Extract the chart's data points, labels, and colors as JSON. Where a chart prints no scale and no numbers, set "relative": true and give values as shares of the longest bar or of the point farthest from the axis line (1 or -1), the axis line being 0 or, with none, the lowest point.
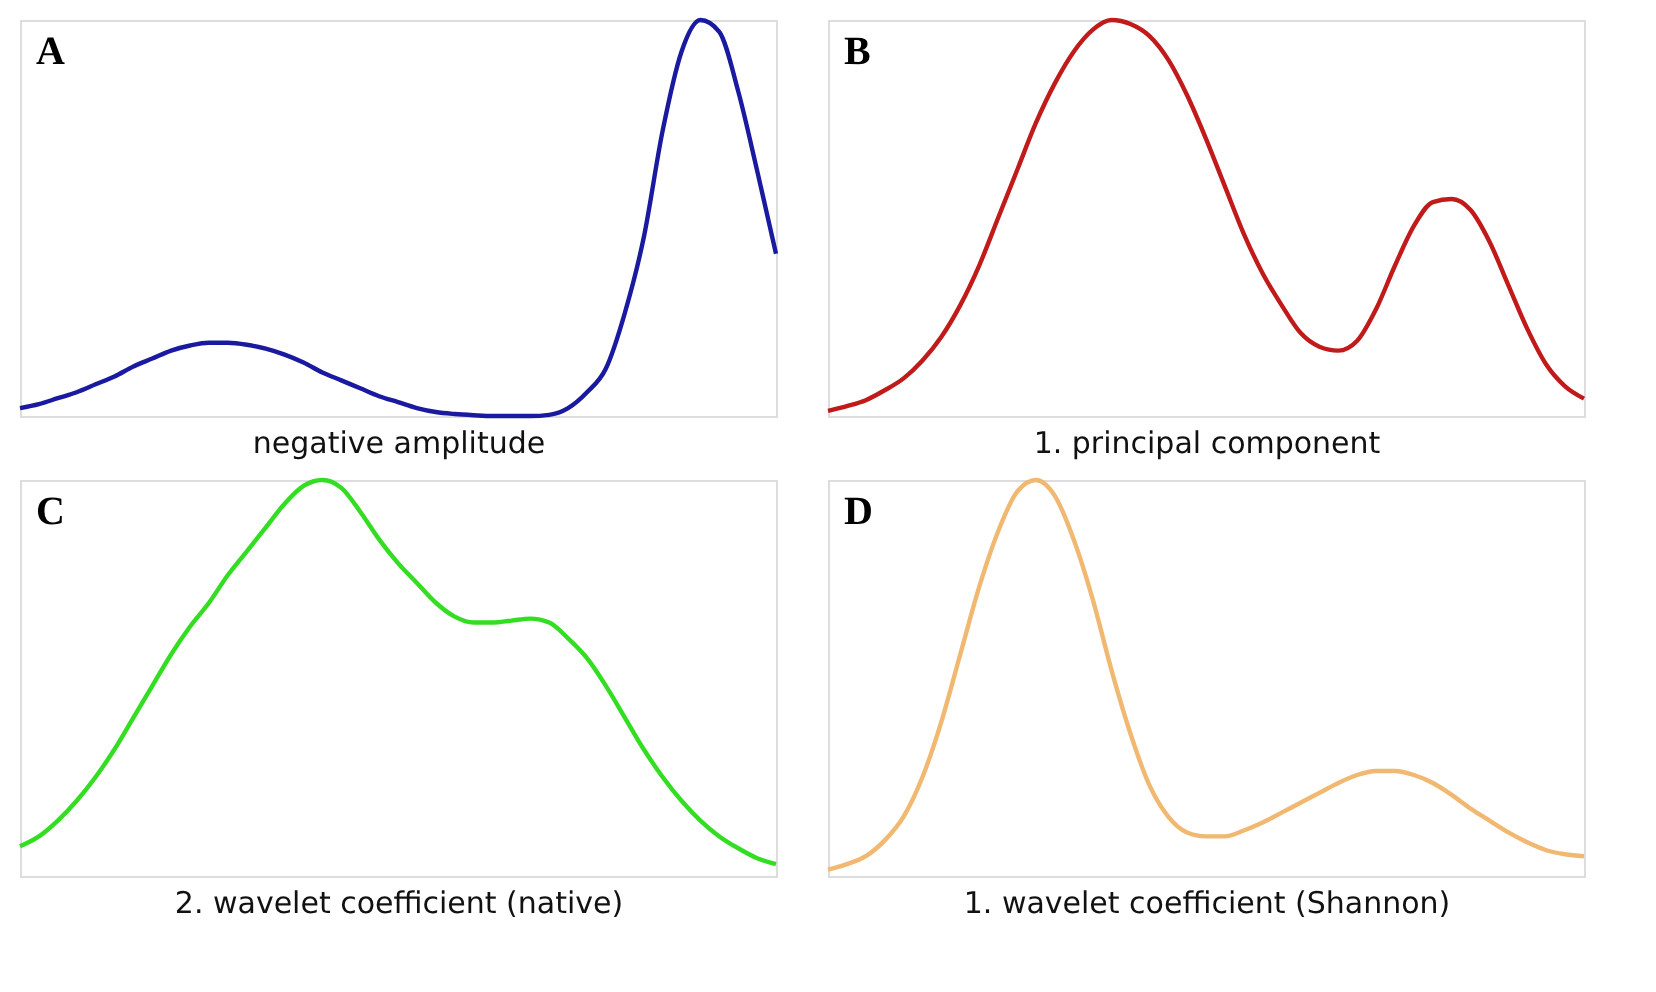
{
  "chart_data": [
    {
      "type": "line",
      "title": "A",
      "xlabel": "negative amplitude",
      "relative": true,
      "categories": [
        null,
        null,
        null,
        null,
        null,
        null,
        null,
        null,
        null,
        null,
        null,
        null,
        null,
        null,
        null,
        null,
        null,
        null,
        null,
        null,
        null,
        null,
        null,
        null,
        null,
        null,
        null,
        null,
        null,
        null,
        null,
        null,
        null,
        null,
        null,
        null,
        null,
        null,
        null,
        null,
        null
      ],
      "series": [
        {
          "color": "#1a1aa0",
          "values": [
            0.02,
            0.03,
            0.045,
            0.06,
            0.08,
            0.1,
            0.125,
            0.145,
            0.165,
            0.178,
            0.185,
            0.185,
            0.18,
            0.17,
            0.155,
            0.135,
            0.11,
            0.09,
            0.07,
            0.05,
            0.035,
            0.02,
            0.01,
            0.005,
            0.002,
            0,
            0,
            0,
            0.003,
            0.02,
            0.06,
            0.12,
            0.26,
            0.45,
            0.72,
            0.92,
            1.0,
            0.97,
            0.82,
            0.62,
            0.41
          ]
        }
      ]
    },
    {
      "type": "line",
      "title": "B",
      "xlabel": "1. principal component",
      "relative": true,
      "categories": [
        null,
        null,
        null,
        null,
        null,
        null,
        null,
        null,
        null,
        null,
        null,
        null,
        null,
        null,
        null,
        null,
        null,
        null,
        null,
        null,
        null,
        null,
        null,
        null,
        null,
        null,
        null,
        null,
        null,
        null,
        null,
        null,
        null,
        null,
        null,
        null,
        null,
        null,
        null,
        null,
        null
      ],
      "series": [
        {
          "color": "#c01a1a",
          "values": [
            0.013,
            0.025,
            0.04,
            0.065,
            0.095,
            0.14,
            0.2,
            0.28,
            0.38,
            0.5,
            0.62,
            0.74,
            0.84,
            0.92,
            0.975,
            1.0,
            0.99,
            0.96,
            0.9,
            0.81,
            0.7,
            0.58,
            0.46,
            0.36,
            0.28,
            0.21,
            0.175,
            0.165,
            0.19,
            0.27,
            0.38,
            0.48,
            0.54,
            0.548,
            0.52,
            0.44,
            0.33,
            0.22,
            0.13,
            0.075,
            0.044
          ]
        }
      ]
    },
    {
      "type": "line",
      "title": "C",
      "xlabel": "2. wavelet coefficient (native)",
      "relative": true,
      "categories": [
        null,
        null,
        null,
        null,
        null,
        null,
        null,
        null,
        null,
        null,
        null,
        null,
        null,
        null,
        null,
        null,
        null,
        null,
        null,
        null,
        null,
        null,
        null,
        null,
        null,
        null,
        null,
        null,
        null,
        null,
        null,
        null,
        null,
        null,
        null,
        null,
        null,
        null,
        null,
        null,
        null
      ],
      "series": [
        {
          "color": "#33dd22",
          "values": [
            0.075,
            0.1,
            0.14,
            0.19,
            0.25,
            0.32,
            0.4,
            0.48,
            0.56,
            0.63,
            0.69,
            0.76,
            0.82,
            0.88,
            0.94,
            0.985,
            1.0,
            0.98,
            0.92,
            0.85,
            0.79,
            0.74,
            0.69,
            0.655,
            0.64,
            0.64,
            0.645,
            0.65,
            0.64,
            0.6,
            0.55,
            0.48,
            0.4,
            0.32,
            0.25,
            0.19,
            0.14,
            0.1,
            0.07,
            0.045,
            0.03
          ]
        }
      ]
    },
    {
      "type": "line",
      "title": "D",
      "xlabel": "1. wavelet coefficient (Shannon)",
      "relative": true,
      "categories": [
        null,
        null,
        null,
        null,
        null,
        null,
        null,
        null,
        null,
        null,
        null,
        null,
        null,
        null,
        null,
        null,
        null,
        null,
        null,
        null,
        null,
        null,
        null,
        null,
        null,
        null,
        null,
        null,
        null,
        null,
        null,
        null,
        null,
        null,
        null,
        null,
        null,
        null,
        null,
        null,
        null
      ],
      "series": [
        {
          "color": "#f0b870",
          "values": [
            0.016,
            0.03,
            0.05,
            0.09,
            0.15,
            0.25,
            0.39,
            0.56,
            0.73,
            0.87,
            0.97,
            1.0,
            0.96,
            0.85,
            0.7,
            0.52,
            0.36,
            0.23,
            0.15,
            0.11,
            0.1,
            0.1,
            0.115,
            0.135,
            0.16,
            0.185,
            0.21,
            0.235,
            0.255,
            0.265,
            0.265,
            0.255,
            0.235,
            0.205,
            0.17,
            0.14,
            0.11,
            0.085,
            0.065,
            0.055,
            0.05
          ]
        }
      ]
    }
  ]
}
